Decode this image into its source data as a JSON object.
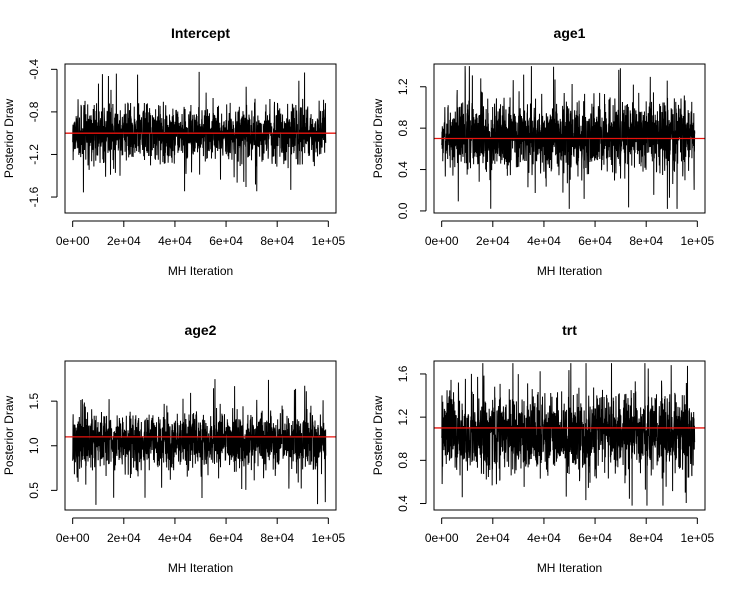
{
  "chart_data": [
    {
      "type": "line",
      "title": "Intercept",
      "xlabel": "MH Iteration",
      "ylabel": "Posterior Draw",
      "xlim": [
        -3000,
        103000
      ],
      "ylim": [
        -1.75,
        -0.35
      ],
      "xticks": [
        0,
        20000,
        40000,
        60000,
        80000,
        100000
      ],
      "xtick_labels": [
        "0e+00",
        "2e+04",
        "4e+04",
        "6e+04",
        "8e+04",
        "1e+05"
      ],
      "yticks": [
        -1.6,
        -1.2,
        -0.8,
        -0.4
      ],
      "ytick_labels": [
        "-1.6",
        "-1.2",
        "-0.8",
        "-0.4"
      ],
      "trace": {
        "mean": -1.0,
        "sd": 0.13,
        "min": -1.72,
        "max": -0.39,
        "n_iter": 100000
      },
      "hline": {
        "value": -1.0,
        "color": "#e8120c"
      }
    },
    {
      "type": "line",
      "title": "age1",
      "xlabel": "MH Iteration",
      "ylabel": "Posterior Draw",
      "xlim": [
        -3000,
        103000
      ],
      "ylim": [
        -0.02,
        1.42
      ],
      "xticks": [
        0,
        20000,
        40000,
        60000,
        80000,
        100000
      ],
      "xtick_labels": [
        "0e+00",
        "2e+04",
        "4e+04",
        "6e+04",
        "8e+04",
        "1e+05"
      ],
      "yticks": [
        0.0,
        0.4,
        0.8,
        1.2
      ],
      "ytick_labels": [
        "0.0",
        "0.4",
        "0.8",
        "1.2"
      ],
      "trace": {
        "mean": 0.72,
        "sd": 0.17,
        "min": 0.02,
        "max": 1.4,
        "n_iter": 100000
      },
      "hline": {
        "value": 0.7,
        "color": "#e8120c"
      }
    },
    {
      "type": "line",
      "title": "age2",
      "xlabel": "MH Iteration",
      "ylabel": "Posterior Draw",
      "xlim": [
        -3000,
        103000
      ],
      "ylim": [
        0.28,
        1.95
      ],
      "xticks": [
        0,
        20000,
        40000,
        60000,
        80000,
        100000
      ],
      "xtick_labels": [
        "0e+00",
        "2e+04",
        "4e+04",
        "6e+04",
        "8e+04",
        "1e+05"
      ],
      "yticks": [
        0.5,
        1.0,
        1.5
      ],
      "ytick_labels": [
        "0.5",
        "1.0",
        "1.5"
      ],
      "trace": {
        "mean": 1.05,
        "sd": 0.16,
        "min": 0.33,
        "max": 1.92,
        "n_iter": 100000
      },
      "hline": {
        "value": 1.1,
        "color": "#e8120c"
      }
    },
    {
      "type": "line",
      "title": "trt",
      "xlabel": "MH Iteration",
      "ylabel": "Posterior Draw",
      "xlim": [
        -3000,
        103000
      ],
      "ylim": [
        0.34,
        1.72
      ],
      "xticks": [
        0,
        20000,
        40000,
        60000,
        80000,
        100000
      ],
      "xtick_labels": [
        "0e+00",
        "2e+04",
        "4e+04",
        "6e+04",
        "8e+04",
        "1e+05"
      ],
      "yticks": [
        0.4,
        0.8,
        1.2,
        1.6
      ],
      "ytick_labels": [
        "0.4",
        "0.8",
        "1.2",
        "1.6"
      ],
      "trace": {
        "mean": 1.05,
        "sd": 0.19,
        "min": 0.38,
        "max": 1.7,
        "n_iter": 100000
      },
      "hline": {
        "value": 1.1,
        "color": "#e8120c"
      }
    }
  ]
}
